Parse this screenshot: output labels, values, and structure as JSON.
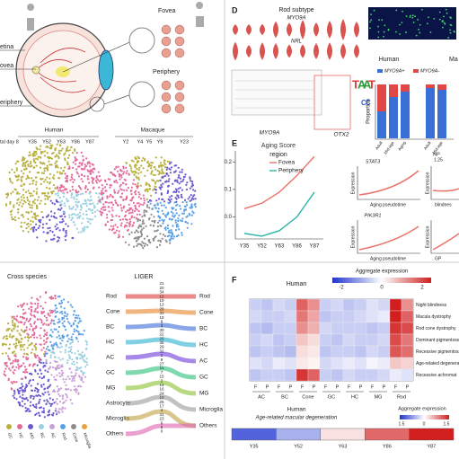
{
  "panel_a": {
    "fovea": "Fovea",
    "periphery": "Periphery",
    "retina": "etina",
    "fovea_left": "ovea",
    "periphery_left": "eriphery"
  },
  "panel_b": {
    "human": "Human",
    "macaque": "Macaque",
    "postnatal": "tal day 8",
    "human_ages": [
      "Y35",
      "Y52",
      "Y63",
      "Y86",
      "Y87"
    ],
    "macaque_ages": [
      "Y2",
      "Y4",
      "Y5",
      "Y9",
      "Y23"
    ]
  },
  "panel_d": {
    "label": "D",
    "title": "Rod subtype",
    "gene1": "MYO9A",
    "gene2": "NRL",
    "locus": "MYO9A",
    "motif_gene": "OTX2",
    "motif": [
      "T",
      "A",
      "A",
      "T",
      "C",
      "C"
    ],
    "human": "Human",
    "macaque": "Ma",
    "legend": [
      "MYO9A+",
      "MYO9A-"
    ],
    "ylabel": "Proportion",
    "human_groups": [
      "Adult",
      "Mid-age",
      "Aging"
    ],
    "macaque_groups": [
      "Adult",
      "Mid-age"
    ],
    "np": "NP"
  },
  "panel_e": {
    "label": "E",
    "title": "Aging Score",
    "legend_title": "region",
    "x": [
      "Y35",
      "Y52",
      "Y63",
      "Y86",
      "Y87"
    ],
    "ylim": [
      -0.08,
      0.24
    ],
    "yticks": [
      0.2,
      0.1,
      {
        "value": 0,
        "label": "0.0"
      }
    ],
    "series": [
      {
        "name": "Fovea",
        "color": "#e8746a",
        "values": [
          0.03,
          0.05,
          0.09,
          0.15,
          0.22
        ]
      },
      {
        "name": "Periphery",
        "color": "#2bb5a8",
        "values": [
          -0.06,
          -0.07,
          -0.05,
          0.0,
          0.09
        ]
      }
    ],
    "genes": [
      "STAT3",
      "PIK3R1"
    ],
    "ylabel": "Expression",
    "xlabel": "Aging pseudotime",
    "right_tick": "1.25",
    "right_labels": [
      "blindnes",
      "GP"
    ]
  },
  "panel_c": {
    "title": "Cross species",
    "liger": "LIGER",
    "left": [
      "Rod",
      "Cone",
      "BC",
      "HC",
      "AC",
      "GC",
      "MG",
      "Astrocyte",
      "Microglia",
      "Others"
    ],
    "right": [
      "Rod",
      "Cone",
      "BC",
      "HC",
      "AC",
      "GC",
      "MG",
      "Microglia",
      "Others"
    ],
    "numbers": [
      "21",
      "20",
      "34",
      "12",
      "19",
      "13",
      "28",
      "33",
      "18",
      "8",
      "3",
      "30",
      "22",
      "25",
      "35",
      "29",
      "32",
      "1",
      "9",
      "27",
      "11",
      "7",
      "15",
      "2",
      "14",
      "16",
      "24",
      "10",
      "26",
      "17",
      "4",
      "31",
      "23",
      "6",
      "5",
      "0"
    ],
    "dot_labels": [
      "GC",
      "HC",
      "MG",
      "BC",
      "AC",
      "Rod",
      "Cone",
      "Microglia"
    ]
  },
  "panel_f": {
    "label": "F",
    "title": "Human",
    "scale_title": "Aggregate expression",
    "scale_ticks": [
      "-2",
      "0",
      "2"
    ],
    "rows": [
      "Night blindness",
      "Macula dystrophy",
      "Rod cone dystrophy",
      "Dominant pigmentosa",
      "Recessive pigmentosa",
      "Age-related degeneration",
      "Recessive achromat"
    ],
    "cell_types": [
      "AC",
      "BC",
      "Cone",
      "GC",
      "HC",
      "MG",
      "Rod"
    ],
    "region_letters": [
      "F",
      "P"
    ],
    "values": [
      [
        -0.5,
        -0.6,
        -0.4,
        -0.5,
        1.4,
        1.0,
        -0.5,
        -0.4,
        -0.6,
        -0.5,
        -0.3,
        -0.4,
        2.0,
        1.0
      ],
      [
        -0.4,
        -0.5,
        -0.5,
        -0.4,
        1.2,
        0.8,
        -0.6,
        -0.5,
        -0.5,
        -0.4,
        -0.3,
        -0.2,
        2.0,
        1.4
      ],
      [
        -0.6,
        -0.7,
        -0.5,
        -0.5,
        1.0,
        0.7,
        -0.4,
        -0.5,
        -0.5,
        -0.5,
        -0.6,
        -0.5,
        1.8,
        1.6
      ],
      [
        -0.5,
        -0.4,
        -0.6,
        -0.5,
        0.5,
        0.3,
        -0.5,
        -0.6,
        -0.4,
        -0.5,
        -0.5,
        -0.4,
        1.6,
        1.2
      ],
      [
        -0.6,
        -0.5,
        -0.6,
        -0.7,
        0.3,
        0.2,
        -0.6,
        -0.5,
        -0.5,
        -0.6,
        -0.4,
        -0.5,
        1.5,
        1.3
      ],
      [
        -0.3,
        -0.4,
        -0.2,
        -0.3,
        0.2,
        0.1,
        -0.4,
        -0.3,
        -0.2,
        -0.3,
        -0.1,
        -0.2,
        0.5,
        0.4
      ],
      [
        -0.6,
        -0.5,
        -0.5,
        -0.6,
        1.8,
        1.4,
        -0.5,
        -0.6,
        -0.4,
        -0.5,
        -0.5,
        -0.4,
        -0.2,
        -0.3
      ]
    ],
    "amd": {
      "title": "Human",
      "subtitle": "Age-related macular degeneration",
      "scale_title": "Aggregate expression",
      "scale_ticks": [
        "1.5",
        "0",
        "1.5"
      ],
      "x": [
        "Y35",
        "Y52",
        "Y63",
        "Y86",
        "Y87"
      ],
      "values": [
        -1.2,
        -0.6,
        0.2,
        1.0,
        1.5
      ]
    }
  }
}
